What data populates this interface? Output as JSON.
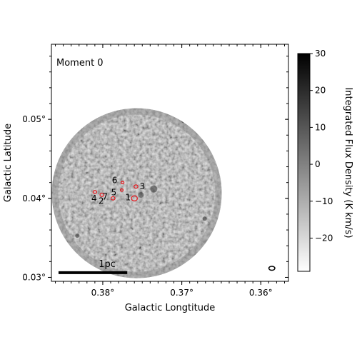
{
  "chart_data": {
    "type": "heatmap",
    "panel_label": "Moment 0",
    "xlabel": "Galactic Longtitude",
    "ylabel": "Galactic Latitude",
    "x_axis": {
      "direction": "decreasing",
      "range": [
        0.3865,
        0.3565
      ],
      "ticks": [
        {
          "value": 0.38,
          "label": "0.38°"
        },
        {
          "value": 0.37,
          "label": "0.37°"
        },
        {
          "value": 0.36,
          "label": "0.36°"
        }
      ]
    },
    "y_axis": {
      "range": [
        0.0295,
        0.0595
      ],
      "ticks": [
        {
          "value": 0.03,
          "label": "0.03°"
        },
        {
          "value": 0.04,
          "label": "0.04°"
        },
        {
          "value": 0.05,
          "label": "0.05°"
        }
      ]
    },
    "image": {
      "center_l": 0.3757,
      "center_b": 0.04065,
      "radius_deg": 0.01075,
      "colormap": "gray_r"
    },
    "colorbar": {
      "label": "Integrated Flux Density (K km/s)",
      "range": [
        -29,
        30
      ],
      "ticks": [
        {
          "value": 30,
          "label": "30"
        },
        {
          "value": 20,
          "label": "20"
        },
        {
          "value": 10,
          "label": "10"
        },
        {
          "value": 0,
          "label": "0"
        },
        {
          "value": -10,
          "label": "−10"
        },
        {
          "value": -20,
          "label": "−20"
        }
      ]
    },
    "sources": [
      {
        "id": "1",
        "l": 0.376,
        "b": 0.04,
        "r": 0.00038
      },
      {
        "id": "2",
        "l": 0.3801,
        "b": 0.04045,
        "r": 0.00025
      },
      {
        "id": "3",
        "l": 0.3758,
        "b": 0.0415,
        "r": 0.00025
      },
      {
        "id": "4",
        "l": 0.381,
        "b": 0.0408,
        "r": 0.00023
      },
      {
        "id": "5",
        "l": 0.3776,
        "b": 0.04105,
        "r": 0.00018
      },
      {
        "id": "6",
        "l": 0.3775,
        "b": 0.042,
        "r": 0.00018
      },
      {
        "id": "7",
        "l": 0.3787,
        "b": 0.04,
        "r": 0.00025
      }
    ],
    "label_offsets": {
      "1": [
        0.0008,
        0.0001
      ],
      "2": [
        0.0001,
        -0.0008
      ],
      "3": [
        -0.0008,
        0.0
      ],
      "4": [
        0.0001,
        -0.0008
      ],
      "5": [
        0.001,
        -0.0003
      ],
      "6": [
        0.001,
        0.0003
      ],
      "7": [
        0.001,
        0.0002
      ]
    },
    "scale_bar": {
      "label": "1pc",
      "l_start": 0.3856,
      "l_end": 0.3769,
      "b": 0.0306
    },
    "beam": {
      "l": 0.3586,
      "b": 0.03115,
      "major": 0.00038,
      "minor": 0.00025
    }
  }
}
